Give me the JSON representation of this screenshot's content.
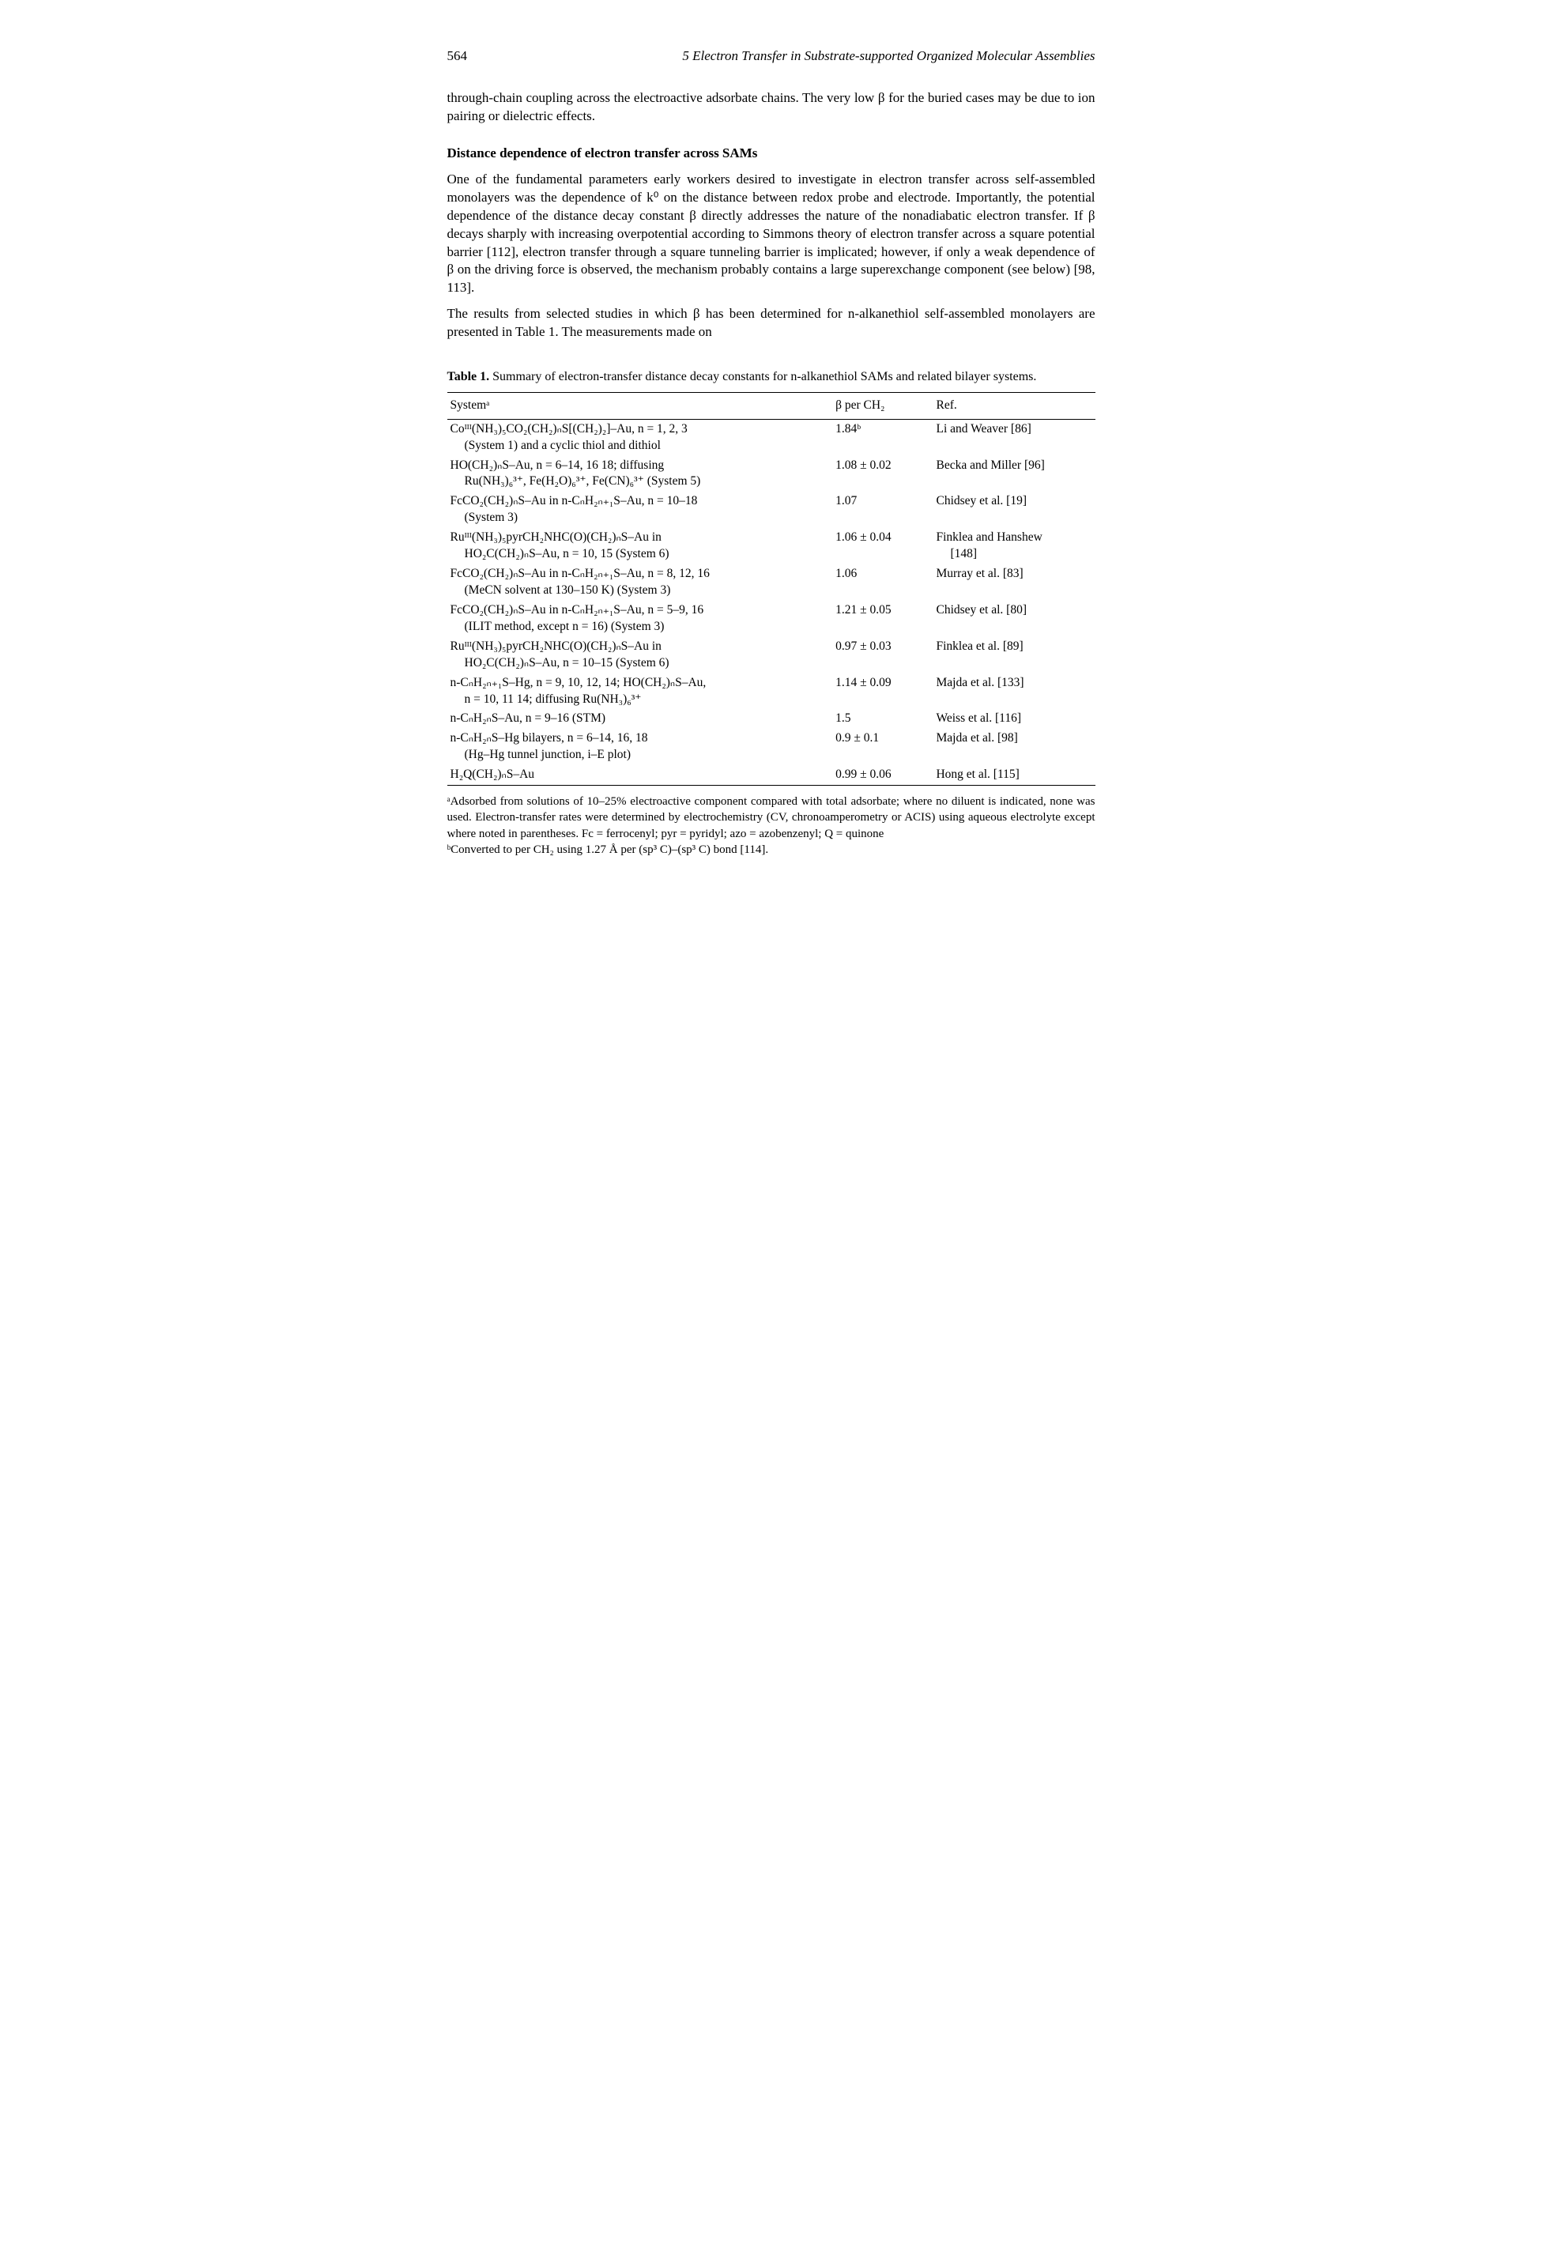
{
  "page": {
    "number": "564",
    "running_head": "5 Electron Transfer in Substrate-supported Organized Molecular Assemblies"
  },
  "para1": "through-chain coupling across the electroactive adsorbate chains. The very low β for the buried cases may be due to ion pairing or dielectric effects.",
  "section_title": "Distance dependence of electron transfer across SAMs",
  "para2": "One of the fundamental parameters early workers desired to investigate in electron transfer across self-assembled monolayers was the dependence of k⁰ on the distance between redox probe and electrode. Importantly, the potential dependence of the distance decay constant β directly addresses the nature of the nonadiabatic electron transfer. If β decays sharply with increasing overpotential according to Simmons theory of electron transfer across a square potential barrier [112], electron transfer through a square tunneling barrier is implicated; however, if only a weak dependence of β on the driving force is observed, the mechanism probably contains a large superexchange component (see below) [98, 113].",
  "para3": "The results from selected studies in which β has been determined for n-alkanethiol self-assembled monolayers are presented in Table 1. The measurements made on",
  "table": {
    "caption_label": "Table 1.",
    "caption_text": " Summary of electron-transfer distance decay constants for n-alkanethiol SAMs and related bilayer systems.",
    "headers": [
      "Systemᵃ",
      "β per CH₂",
      "Ref."
    ],
    "rows": [
      {
        "sys_line1": "Coᴵᴵᴵ(NH₃)₅CO₂(CH₂)ₙS[(CH₂)₂]–Au, n = 1, 2, 3",
        "sys_line2": "(System 1) and a cyclic thiol and dithiol",
        "beta": "1.84ᵇ",
        "ref": "Li and Weaver [86]"
      },
      {
        "sys_line1": "HO(CH₂)ₙS–Au, n = 6–14, 16 18; diffusing",
        "sys_line2": "Ru(NH₃)₆³⁺, Fe(H₂O)₆³⁺, Fe(CN)₆³⁺ (System 5)",
        "beta": "1.08 ± 0.02",
        "ref": "Becka and Miller [96]"
      },
      {
        "sys_line1": "FcCO₂(CH₂)ₙS–Au in n-CₙH₂ₙ₊₁S–Au, n = 10–18",
        "sys_line2": "(System 3)",
        "beta": "1.07",
        "ref": "Chidsey et al. [19]"
      },
      {
        "sys_line1": "Ruᴵᴵᴵ(NH₃)₅pyrCH₂NHC(O)(CH₂)ₙS–Au in",
        "sys_line2": "HO₂C(CH₂)ₙS–Au, n = 10, 15 (System 6)",
        "beta": "1.06 ± 0.04",
        "ref_line1": "Finklea and Hanshew",
        "ref_line2": "[148]"
      },
      {
        "sys_line1": "FcCO₂(CH₂)ₙS–Au in n-CₙH₂ₙ₊₁S–Au, n = 8, 12, 16",
        "sys_line2": "(MeCN solvent at 130–150 K) (System 3)",
        "beta": "1.06",
        "ref": "Murray et al. [83]"
      },
      {
        "sys_line1": "FcCO₂(CH₂)ₙS–Au in n-CₙH₂ₙ₊₁S–Au, n = 5–9, 16",
        "sys_line2": "(ILIT method, except n = 16) (System 3)",
        "beta": "1.21 ± 0.05",
        "ref": "Chidsey et al. [80]"
      },
      {
        "sys_line1": "Ruᴵᴵᴵ(NH₃)₅pyrCH₂NHC(O)(CH₂)ₙS–Au in",
        "sys_line2": "HO₂C(CH₂)ₙS–Au, n = 10–15 (System 6)",
        "beta": "0.97 ± 0.03",
        "ref": "Finklea et al. [89]"
      },
      {
        "sys_line1": "n-CₙH₂ₙ₊₁S–Hg, n = 9, 10, 12, 14; HO(CH₂)ₙS–Au,",
        "sys_line2": "n = 10, 11 14; diffusing Ru(NH₃)₆³⁺",
        "beta": "1.14 ± 0.09",
        "ref": "Majda et al. [133]"
      },
      {
        "sys_line1": "n-CₙH₂ₙS–Au, n = 9–16 (STM)",
        "sys_line2": "",
        "beta": "1.5",
        "ref": "Weiss et al. [116]"
      },
      {
        "sys_line1": "n-CₙH₂ₙS–Hg bilayers, n = 6–14, 16, 18",
        "sys_line2": "(Hg–Hg tunnel junction, i–E plot)",
        "beta": "0.9 ± 0.1",
        "ref": "Majda et al. [98]"
      },
      {
        "sys_line1": "H₂Q(CH₂)ₙS–Au",
        "sys_line2": "",
        "beta": "0.99 ± 0.06",
        "ref": "Hong et al. [115]"
      }
    ]
  },
  "footnote_a": "ᵃAdsorbed from solutions of 10–25% electroactive component compared with total adsorbate; where no diluent is indicated, none was used. Electron-transfer rates were determined by electrochemistry (CV, chronoamperometry or ACIS) using aqueous electrolyte except where noted in parentheses. Fc = ferrocenyl; pyr = pyridyl; azo = azobenzenyl; Q = quinone",
  "footnote_b": "ᵇConverted to per CH₂ using 1.27 Å per (sp³ C)–(sp³ C) bond [114]."
}
